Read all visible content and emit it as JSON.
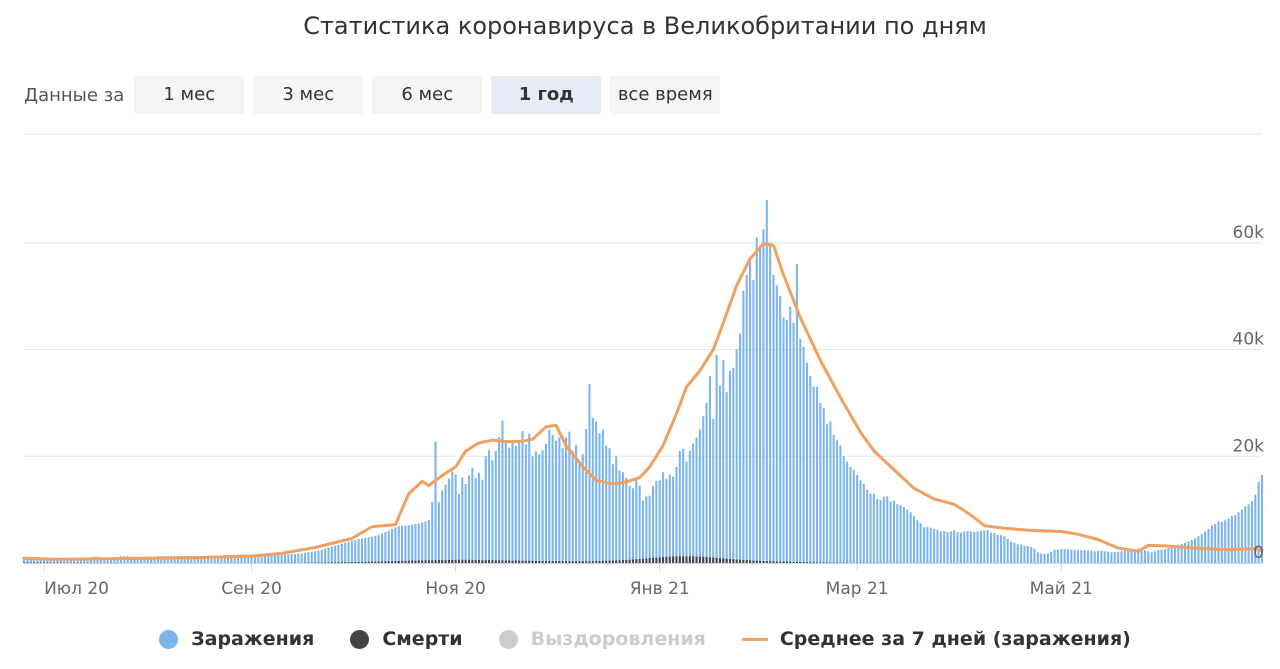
{
  "chart_data": {
    "type": "bar",
    "title": "Статистика коронавируса в Великобритании по дням",
    "range_selector": {
      "label": "Данные за",
      "options": [
        "1 мес",
        "3 мес",
        "6 мес",
        "1 год",
        "все время"
      ],
      "selected": "1 год"
    },
    "x_ticks": [
      {
        "label": "Июл 20",
        "date": "2020-07-01"
      },
      {
        "label": "Сен 20",
        "date": "2020-09-01"
      },
      {
        "label": "Ноя 20",
        "date": "2020-11-01"
      },
      {
        "label": "Янв 21",
        "date": "2021-01-01"
      },
      {
        "label": "Мар 21",
        "date": "2021-03-01"
      },
      {
        "label": "Май 21",
        "date": "2021-05-01"
      }
    ],
    "y_ticks": [
      {
        "label": "0",
        "value": 0
      },
      {
        "label": "20k",
        "value": 20000
      },
      {
        "label": "40k",
        "value": 40000
      },
      {
        "label": "60k",
        "value": 60000
      }
    ],
    "xlim": [
      "2020-06-25",
      "2021-06-30"
    ],
    "ylim": [
      0,
      80000
    ],
    "grid": true,
    "legend_position": "bottom",
    "legend": [
      {
        "name": "Заражения",
        "color": "#7cb5ec",
        "marker": "circle",
        "visible": true
      },
      {
        "name": "Смерти",
        "color": "#434348",
        "marker": "circle",
        "visible": true
      },
      {
        "name": "Выздоровления",
        "color": "#cccccc",
        "marker": "circle",
        "visible": false
      },
      {
        "name": "Среднее за 7 дней (заражения)",
        "color": "#f0a060",
        "marker": "line",
        "visible": true
      }
    ],
    "series": [
      {
        "name": "Заражения",
        "x_start": "2020-06-25",
        "values": [
          1200,
          1100,
          1000,
          900,
          1000,
          900,
          800,
          900,
          800,
          800,
          700,
          700,
          800,
          900,
          900,
          800,
          900,
          800,
          900,
          1000,
          1100,
          1200,
          1200,
          1100,
          1000,
          1000,
          1000,
          1100,
          1200,
          1300,
          1300,
          1300,
          1200,
          1100,
          1000,
          900,
          1000,
          1100,
          1200,
          1200,
          1300,
          1300,
          1300,
          1300,
          1300,
          1300,
          1300,
          1300,
          1300,
          1300,
          1300,
          1300,
          1300,
          1300,
          1300,
          1400,
          1400,
          1400,
          1400,
          1400,
          1500,
          1500,
          1500,
          1500,
          1600,
          1600,
          1600,
          1600,
          1600,
          1500,
          1500,
          1500,
          1500,
          1500,
          1500,
          1500,
          1500,
          1500,
          1600,
          1600,
          1700,
          1700,
          1800,
          1800,
          1900,
          2000,
          2100,
          2200,
          2300,
          2500,
          2700,
          2900,
          3100,
          3200,
          3400,
          3600,
          3800,
          4000,
          4200,
          4300,
          4500,
          4600,
          4700,
          4800,
          4900,
          5100,
          5300,
          5500,
          5800,
          6100,
          6400,
          6700,
          6900,
          7000,
          7000,
          7100,
          7200,
          7300,
          7400,
          7600,
          7800,
          8100,
          11400,
          22800,
          11400,
          13600,
          14700,
          15800,
          17200,
          16600,
          12900,
          16000,
          14800,
          16400,
          17800,
          16000,
          16900,
          15600,
          20000,
          21200,
          19300,
          21000,
          23600,
          26700,
          22900,
          21600,
          22500,
          21900,
          22800,
          24700,
          22200,
          24200,
          20000,
          20900,
          20400,
          21100,
          22300,
          25000,
          24000,
          22900,
          23500,
          21500,
          23500,
          24600,
          21000,
          22100,
          19000,
          20400,
          25100,
          33500,
          27200,
          26500,
          24300,
          25000,
          22000,
          21500,
          18500,
          20000,
          17300,
          17000,
          16000,
          14500,
          14000,
          15600,
          14500,
          11700,
          12500,
          12600,
          14400,
          15400,
          15500,
          17000,
          15800,
          16600,
          16200,
          18000,
          21000,
          21400,
          19000,
          21000,
          22400,
          23500,
          25000,
          27500,
          30000,
          35000,
          27000,
          39000,
          33200,
          38000,
          32000,
          36000,
          36500,
          40000,
          43000,
          51000,
          54000,
          57000,
          53000,
          61000,
          59500,
          62500,
          68000,
          60000,
          54000,
          52000,
          50000,
          46000,
          45500,
          48000,
          45000,
          56000,
          42000,
          40500,
          37500,
          35000,
          33000,
          33000,
          30000,
          29000,
          26000,
          26500,
          24000,
          23000,
          22000,
          20000,
          19000,
          18000,
          17500,
          16500,
          15500,
          14800,
          13700,
          13000,
          13000,
          12000,
          11800,
          12400,
          12500,
          11500,
          11700,
          11000,
          10800,
          10500,
          10000,
          9500,
          8800,
          8000,
          7500,
          6700,
          6800,
          6600,
          6400,
          6200,
          5900,
          6000,
          5800,
          5900,
          6100,
          5800,
          5700,
          5900,
          6000,
          5900,
          5800,
          5900,
          6000,
          6100,
          6200,
          5700,
          5600,
          5300,
          5200,
          5000,
          4500,
          4000,
          3800,
          3500,
          3400,
          3200,
          3200,
          3000,
          2700,
          2000,
          1800,
          1700,
          1800,
          2100,
          2500,
          2500,
          2600,
          2600,
          2600,
          2500,
          2500,
          2400,
          2400,
          2400,
          2300,
          2300,
          2200,
          2300,
          2300,
          2200,
          2100,
          2000,
          2100,
          2100,
          2200,
          2300,
          2400,
          2400,
          2600,
          2700,
          2500,
          2400,
          2200,
          2000,
          2200,
          2400,
          2500,
          2600,
          2800,
          3000,
          3200,
          3400,
          3600,
          3800,
          4000,
          4300,
          4600,
          5000,
          5400,
          5900,
          6400,
          7000,
          7300,
          7800,
          7700,
          8000,
          8300,
          8800,
          9000,
          9500,
          10000,
          10600,
          11000,
          11600,
          12800,
          15200,
          16500,
          17000,
          18300
        ]
      },
      {
        "name": "Смерти",
        "x_start": "2020-06-25",
        "values": [
          130,
          120,
          110,
          100,
          100,
          90,
          80,
          80,
          70,
          60,
          60,
          55,
          50,
          50,
          45,
          40,
          40,
          35,
          30,
          30,
          30,
          25,
          25,
          20,
          20,
          20,
          20,
          20,
          20,
          20,
          20,
          18,
          18,
          17,
          16,
          15,
          15,
          14,
          14,
          14,
          13,
          13,
          13,
          12,
          12,
          12,
          12,
          12,
          12,
          12,
          12,
          12,
          12,
          12,
          12,
          13,
          13,
          13,
          13,
          14,
          14,
          14,
          15,
          15,
          16,
          16,
          17,
          17,
          18,
          19,
          20,
          21,
          22,
          23,
          25,
          27,
          29,
          31,
          33,
          36,
          39,
          42,
          46,
          50,
          55,
          60,
          65,
          70,
          75,
          80,
          90,
          100,
          110,
          120,
          130,
          140,
          150,
          160,
          170,
          180,
          190,
          200,
          215,
          230,
          245,
          260,
          275,
          290,
          305,
          320,
          335,
          350,
          370,
          390,
          410,
          430,
          450,
          460,
          470,
          480,
          490,
          500,
          510,
          520,
          530,
          540,
          550,
          560,
          570,
          580,
          590,
          600,
          590,
          580,
          570,
          560,
          550,
          540,
          530,
          520,
          510,
          500,
          490,
          480,
          470,
          460,
          450,
          440,
          430,
          420,
          410,
          400,
          390,
          380,
          370,
          365,
          360,
          355,
          350,
          345,
          340,
          335,
          330,
          325,
          320,
          320,
          320,
          320,
          320,
          330,
          340,
          360,
          380,
          400,
          420,
          440,
          460,
          480,
          500,
          530,
          560,
          600,
          650,
          700,
          750,
          800,
          850,
          900,
          950,
          1000,
          1050,
          1100,
          1150,
          1200,
          1220,
          1240,
          1250,
          1250,
          1240,
          1230,
          1220,
          1200,
          1180,
          1150,
          1100,
          1050,
          1000,
          950,
          900,
          850,
          800,
          750,
          700,
          660,
          620,
          580,
          540,
          500,
          470,
          440,
          410,
          380,
          350,
          330,
          310,
          290,
          270,
          250,
          230,
          210,
          190,
          180,
          170,
          160,
          150,
          140,
          130,
          120,
          110,
          100,
          95,
          90,
          85,
          80,
          75,
          70,
          65,
          60,
          55,
          50,
          48,
          46,
          44,
          42,
          40,
          38,
          36,
          34,
          32,
          30,
          28,
          26,
          24,
          22,
          20,
          18,
          17,
          16,
          15,
          14,
          13,
          12,
          11,
          10,
          10,
          10,
          10,
          10,
          10,
          10,
          10,
          10,
          10,
          10,
          10,
          10,
          10,
          10,
          10,
          10,
          10,
          10,
          10,
          10,
          10,
          10,
          10,
          10,
          10,
          10,
          10,
          10,
          10,
          10,
          10,
          10,
          10,
          10,
          10,
          10,
          10,
          10,
          10,
          10,
          10,
          10,
          10,
          10,
          10,
          10,
          10,
          10,
          10,
          10,
          10,
          10,
          10,
          10,
          10,
          10,
          10,
          10,
          10,
          10,
          10,
          10,
          10,
          10,
          10,
          10,
          10,
          10,
          10,
          10,
          10,
          10,
          10,
          10,
          10,
          10,
          10,
          10,
          10,
          10,
          10,
          10,
          10,
          10,
          10,
          10,
          10,
          10,
          10,
          10,
          10,
          10,
          10,
          10,
          10,
          10,
          10,
          10,
          10,
          10,
          10
        ]
      },
      {
        "name": "Среднее за 7 дней (заражения)",
        "type": "line",
        "points": [
          [
            "2020-06-25",
            900
          ],
          [
            "2020-07-05",
            700
          ],
          [
            "2020-07-20",
            800
          ],
          [
            "2020-08-01",
            900
          ],
          [
            "2020-08-15",
            1000
          ],
          [
            "2020-09-01",
            1300
          ],
          [
            "2020-09-10",
            1800
          ],
          [
            "2020-09-20",
            2900
          ],
          [
            "2020-10-01",
            4600
          ],
          [
            "2020-10-07",
            6800
          ],
          [
            "2020-10-14",
            7200
          ],
          [
            "2020-10-18",
            13000
          ],
          [
            "2020-10-22",
            15300
          ],
          [
            "2020-10-24",
            14500
          ],
          [
            "2020-10-28",
            16400
          ],
          [
            "2020-11-01",
            18000
          ],
          [
            "2020-11-04",
            21000
          ],
          [
            "2020-11-08",
            22500
          ],
          [
            "2020-11-12",
            23000
          ],
          [
            "2020-11-17",
            22700
          ],
          [
            "2020-11-21",
            22800
          ],
          [
            "2020-11-24",
            23200
          ],
          [
            "2020-11-28",
            25500
          ],
          [
            "2020-12-01",
            25800
          ],
          [
            "2020-12-04",
            22000
          ],
          [
            "2020-12-09",
            18000
          ],
          [
            "2020-12-13",
            15500
          ],
          [
            "2020-12-18",
            14800
          ],
          [
            "2020-12-22",
            15200
          ],
          [
            "2020-12-26",
            16000
          ],
          [
            "2020-12-29",
            18000
          ],
          [
            "2021-01-02",
            22000
          ],
          [
            "2021-01-06",
            28000
          ],
          [
            "2021-01-09",
            33000
          ],
          [
            "2021-01-13",
            36000
          ],
          [
            "2021-01-17",
            40000
          ],
          [
            "2021-01-20",
            45000
          ],
          [
            "2021-01-24",
            52000
          ],
          [
            "2021-01-28",
            57000
          ],
          [
            "2021-02-01",
            59800
          ],
          [
            "2021-02-04",
            59500
          ],
          [
            "2021-02-07",
            54000
          ],
          [
            "2021-02-12",
            46000
          ],
          [
            "2021-02-18",
            38000
          ],
          [
            "2021-02-24",
            31000
          ],
          [
            "2021-03-02",
            24500
          ],
          [
            "2021-03-06",
            21000
          ],
          [
            "2021-03-12",
            17500
          ],
          [
            "2021-03-18",
            14000
          ],
          [
            "2021-03-24",
            12000
          ],
          [
            "2021-03-30",
            11000
          ],
          [
            "2021-04-04",
            9000
          ],
          [
            "2021-04-08",
            7000
          ],
          [
            "2021-04-14",
            6500
          ],
          [
            "2021-04-22",
            6100
          ],
          [
            "2021-05-01",
            5900
          ],
          [
            "2021-05-06",
            5400
          ],
          [
            "2021-05-12",
            4400
          ],
          [
            "2021-05-18",
            2800
          ],
          [
            "2021-05-24",
            2200
          ],
          [
            "2021-05-27",
            3300
          ],
          [
            "2021-06-01",
            3200
          ],
          [
            "2021-06-10",
            2800
          ],
          [
            "2021-06-20",
            2500
          ],
          [
            "2021-06-25",
            2600
          ],
          [
            "2021-06-28",
            2700
          ],
          [
            "2021-06-30",
            2300
          ]
        ]
      }
    ]
  }
}
